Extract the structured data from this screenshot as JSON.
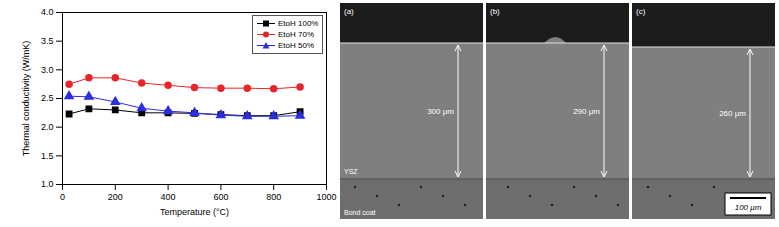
{
  "chart_data": {
    "type": "line",
    "x_label": "Temperature (°C)",
    "y_label": "Thermal conductivity (W/mK)",
    "x": [
      25,
      100,
      200,
      300,
      400,
      500,
      600,
      700,
      800,
      900
    ],
    "series": [
      {
        "name": "EtoH 100%",
        "color": "#000000",
        "marker": "square",
        "values": [
          2.23,
          2.32,
          2.3,
          2.25,
          2.25,
          2.24,
          2.22,
          2.2,
          2.2,
          2.27
        ]
      },
      {
        "name": "EtoH 70%",
        "color": "#e8262a",
        "marker": "circle",
        "values": [
          2.75,
          2.86,
          2.86,
          2.77,
          2.73,
          2.69,
          2.68,
          2.68,
          2.67,
          2.7
        ]
      },
      {
        "name": "EtoH 50%",
        "color": "#2a2ee0",
        "marker": "triangle",
        "values": [
          2.54,
          2.53,
          2.44,
          2.33,
          2.28,
          2.25,
          2.21,
          2.19,
          2.19,
          2.2
        ]
      }
    ],
    "xlim": [
      0,
      1000
    ],
    "xticks": [
      0,
      200,
      400,
      600,
      800,
      1000
    ],
    "ylim": [
      1.0,
      4.0
    ],
    "yticks": [
      {
        "value": 1,
        "label": "1.0"
      },
      1.5,
      {
        "value": 2,
        "label": "2.0"
      },
      2.5,
      {
        "value": 3,
        "label": "3.0"
      },
      3.5,
      {
        "value": 4,
        "label": "4.0"
      }
    ],
    "grid": false,
    "legend": "upper right"
  },
  "micrographs": {
    "panels": [
      {
        "label": "(a)",
        "thickness": "300 μm"
      },
      {
        "label": "(b)",
        "thickness": "290 μm"
      },
      {
        "label": "(c)",
        "thickness": "260 μm"
      }
    ],
    "coating_label": "YSZ",
    "substrate_label": "Bond coat",
    "scale_bar": "100 μm"
  }
}
